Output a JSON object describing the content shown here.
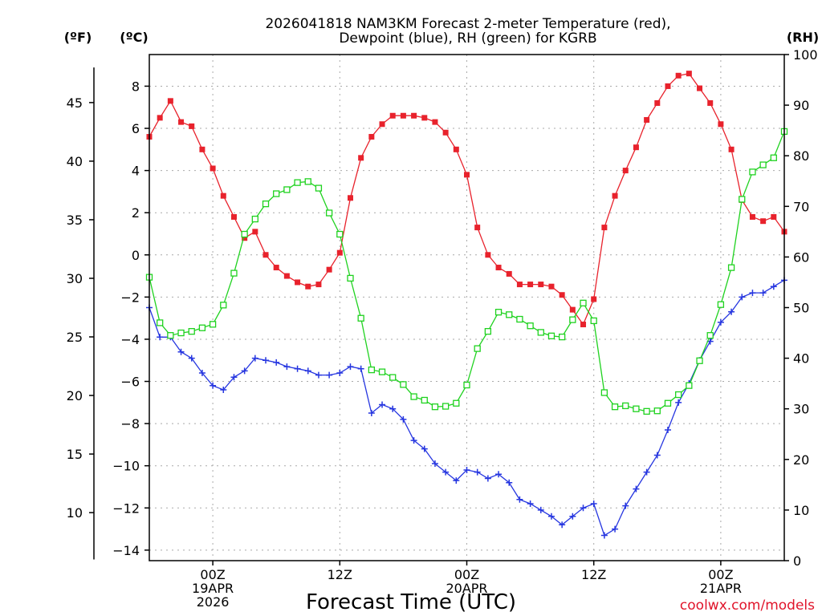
{
  "chart_data": {
    "type": "line",
    "title": [
      "2026041818 NAM3KM Forecast 2-meter Temperature (red),",
      "Dewpoint (blue), RH (green) for KGRB"
    ],
    "xlabel": "Forecast Time (UTC)",
    "credit": "coolwx.com/models",
    "units": {
      "fahrenheit": "(ºF)",
      "celsius": "(ºC)",
      "rh": "(RH)"
    },
    "x_range_hours": [
      -6,
      54
    ],
    "x_ticks": [
      {
        "hour": 0,
        "lines": [
          "00Z",
          "19APR",
          "2026"
        ]
      },
      {
        "hour": 12,
        "lines": [
          "12Z"
        ]
      },
      {
        "hour": 24,
        "lines": [
          "00Z",
          "20APR"
        ]
      },
      {
        "hour": 36,
        "lines": [
          "12Z"
        ]
      },
      {
        "hour": 48,
        "lines": [
          "00Z",
          "21APR"
        ]
      }
    ],
    "celsius_axis": {
      "range": [
        -14.5,
        9.5
      ],
      "ticks": [
        "−14",
        "−12",
        "−10",
        "−8",
        "−6",
        "−4",
        "−2",
        "0",
        "2",
        "4",
        "6",
        "8"
      ],
      "tick_values": [
        -14,
        -12,
        -10,
        -8,
        -6,
        -4,
        -2,
        0,
        2,
        4,
        6,
        8
      ]
    },
    "fahrenheit_axis": {
      "ticks": [
        "10",
        "15",
        "20",
        "25",
        "30",
        "35",
        "40",
        "45"
      ],
      "tick_values": [
        10,
        15,
        20,
        25,
        30,
        35,
        40,
        45
      ],
      "line_range": [
        6,
        48
      ]
    },
    "rh_axis": {
      "range": [
        0,
        100
      ],
      "ticks": [
        "0",
        "10",
        "20",
        "30",
        "40",
        "50",
        "60",
        "70",
        "80",
        "90",
        "100"
      ],
      "tick_values": [
        0,
        10,
        20,
        30,
        40,
        50,
        60,
        70,
        80,
        90,
        100
      ]
    },
    "series": [
      {
        "name": "Temperature",
        "unit": "C",
        "axis": "celsius",
        "color": "#e8222c",
        "marker": "filled-square",
        "points": [
          [
            -6,
            5.6
          ],
          [
            -5,
            6.5
          ],
          [
            -4,
            7.3
          ],
          [
            -3,
            6.3
          ],
          [
            -2,
            6.1
          ],
          [
            -1,
            5.0
          ],
          [
            0,
            4.1
          ],
          [
            1,
            2.8
          ],
          [
            2,
            1.8
          ],
          [
            3,
            0.8
          ],
          [
            4,
            1.1
          ],
          [
            5,
            0.0
          ],
          [
            6,
            -0.6
          ],
          [
            7,
            -1.0
          ],
          [
            8,
            -1.3
          ],
          [
            9,
            -1.5
          ],
          [
            10,
            -1.4
          ],
          [
            11,
            -0.7
          ],
          [
            12,
            0.1
          ],
          [
            13,
            2.7
          ],
          [
            14,
            4.6
          ],
          [
            15,
            5.6
          ],
          [
            16,
            6.2
          ],
          [
            17,
            6.6
          ],
          [
            18,
            6.6
          ],
          [
            19,
            6.6
          ],
          [
            20,
            6.5
          ],
          [
            21,
            6.3
          ],
          [
            22,
            5.8
          ],
          [
            23,
            5.0
          ],
          [
            24,
            3.8
          ],
          [
            25,
            1.3
          ],
          [
            26,
            0.0
          ],
          [
            27,
            -0.6
          ],
          [
            28,
            -0.9
          ],
          [
            29,
            -1.4
          ],
          [
            30,
            -1.4
          ],
          [
            31,
            -1.4
          ],
          [
            32,
            -1.5
          ],
          [
            33,
            -1.9
          ],
          [
            34,
            -2.6
          ],
          [
            35,
            -3.3
          ],
          [
            36,
            -2.1
          ],
          [
            37,
            1.3
          ],
          [
            38,
            2.8
          ],
          [
            39,
            4.0
          ],
          [
            40,
            5.1
          ],
          [
            41,
            6.4
          ],
          [
            42,
            7.2
          ],
          [
            43,
            8.0
          ],
          [
            44,
            8.5
          ],
          [
            45,
            8.6
          ],
          [
            46,
            7.9
          ],
          [
            47,
            7.2
          ],
          [
            48,
            6.2
          ],
          [
            49,
            5.0
          ],
          [
            50,
            2.6
          ],
          [
            51,
            1.8
          ],
          [
            52,
            1.6
          ],
          [
            53,
            1.8
          ],
          [
            54,
            1.1
          ]
        ]
      },
      {
        "name": "Dewpoint",
        "unit": "C",
        "axis": "celsius",
        "color": "#2636e0",
        "marker": "plus",
        "points": [
          [
            -6,
            -2.5
          ],
          [
            -5,
            -3.9
          ],
          [
            -4,
            -3.9
          ],
          [
            -3,
            -4.6
          ],
          [
            -2,
            -4.9
          ],
          [
            -1,
            -5.6
          ],
          [
            0,
            -6.2
          ],
          [
            1,
            -6.4
          ],
          [
            2,
            -5.8
          ],
          [
            3,
            -5.5
          ],
          [
            4,
            -4.9
          ],
          [
            5,
            -5.0
          ],
          [
            6,
            -5.1
          ],
          [
            7,
            -5.3
          ],
          [
            8,
            -5.4
          ],
          [
            9,
            -5.5
          ],
          [
            10,
            -5.7
          ],
          [
            11,
            -5.7
          ],
          [
            12,
            -5.6
          ],
          [
            13,
            -5.3
          ],
          [
            14,
            -5.4
          ],
          [
            15,
            -7.5
          ],
          [
            16,
            -7.1
          ],
          [
            17,
            -7.3
          ],
          [
            18,
            -7.8
          ],
          [
            19,
            -8.8
          ],
          [
            20,
            -9.2
          ],
          [
            21,
            -9.9
          ],
          [
            22,
            -10.3
          ],
          [
            23,
            -10.7
          ],
          [
            24,
            -10.2
          ],
          [
            25,
            -10.3
          ],
          [
            26,
            -10.6
          ],
          [
            27,
            -10.4
          ],
          [
            28,
            -10.8
          ],
          [
            29,
            -11.6
          ],
          [
            30,
            -11.8
          ],
          [
            31,
            -12.1
          ],
          [
            32,
            -12.4
          ],
          [
            33,
            -12.8
          ],
          [
            34,
            -12.4
          ],
          [
            35,
            -12.0
          ],
          [
            36,
            -11.8
          ],
          [
            37,
            -13.3
          ],
          [
            38,
            -13.0
          ],
          [
            39,
            -11.9
          ],
          [
            40,
            -11.1
          ],
          [
            41,
            -10.3
          ],
          [
            42,
            -9.5
          ],
          [
            43,
            -8.3
          ],
          [
            44,
            -7.0
          ],
          [
            45,
            -6.1
          ],
          [
            46,
            -5.0
          ],
          [
            47,
            -4.1
          ],
          [
            48,
            -3.2
          ],
          [
            49,
            -2.7
          ],
          [
            50,
            -2.0
          ],
          [
            51,
            -1.8
          ],
          [
            52,
            -1.8
          ],
          [
            53,
            -1.5
          ],
          [
            54,
            -1.2
          ]
        ]
      },
      {
        "name": "RH",
        "unit": "%",
        "axis": "rh",
        "color": "#1fd21f",
        "marker": "open-square",
        "points": [
          [
            -6,
            56.0
          ],
          [
            -5,
            47.0
          ],
          [
            -4,
            44.5
          ],
          [
            -3,
            45.0
          ],
          [
            -2,
            45.3
          ],
          [
            -1,
            46.0
          ],
          [
            0,
            46.7
          ],
          [
            1,
            50.5
          ],
          [
            2,
            56.8
          ],
          [
            3,
            64.5
          ],
          [
            4,
            67.5
          ],
          [
            5,
            70.5
          ],
          [
            6,
            72.5
          ],
          [
            7,
            73.3
          ],
          [
            8,
            74.7
          ],
          [
            9,
            74.9
          ],
          [
            10,
            73.6
          ],
          [
            11,
            68.7
          ],
          [
            12,
            64.5
          ],
          [
            13,
            55.8
          ],
          [
            14,
            47.9
          ],
          [
            15,
            37.7
          ],
          [
            16,
            37.3
          ],
          [
            17,
            36.2
          ],
          [
            18,
            34.8
          ],
          [
            19,
            32.4
          ],
          [
            20,
            31.7
          ],
          [
            21,
            30.4
          ],
          [
            22,
            30.5
          ],
          [
            23,
            31.1
          ],
          [
            24,
            34.7
          ],
          [
            25,
            41.9
          ],
          [
            26,
            45.3
          ],
          [
            27,
            49.1
          ],
          [
            28,
            48.6
          ],
          [
            29,
            47.7
          ],
          [
            30,
            46.4
          ],
          [
            31,
            45.1
          ],
          [
            32,
            44.4
          ],
          [
            33,
            44.2
          ],
          [
            34,
            47.6
          ],
          [
            35,
            50.9
          ],
          [
            36,
            47.4
          ],
          [
            37,
            33.2
          ],
          [
            38,
            30.4
          ],
          [
            39,
            30.6
          ],
          [
            40,
            30.0
          ],
          [
            41,
            29.5
          ],
          [
            42,
            29.6
          ],
          [
            43,
            31.1
          ],
          [
            44,
            32.8
          ],
          [
            45,
            34.6
          ],
          [
            46,
            39.5
          ],
          [
            47,
            44.5
          ],
          [
            48,
            50.6
          ],
          [
            49,
            57.9
          ],
          [
            50,
            71.4
          ],
          [
            51,
            76.8
          ],
          [
            52,
            78.2
          ],
          [
            53,
            79.6
          ],
          [
            54,
            84.8
          ]
        ]
      }
    ]
  }
}
